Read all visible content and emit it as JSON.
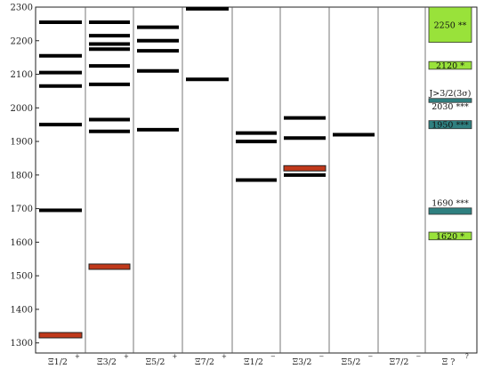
{
  "chart_data": {
    "type": "level-spectrum",
    "title": "",
    "xlabel": "",
    "ylabel": "",
    "ylim": [
      1270,
      2300
    ],
    "y_ticks": [
      1300,
      1400,
      1500,
      1600,
      1700,
      1800,
      1900,
      2000,
      2100,
      2200,
      2300
    ],
    "columns": [
      {
        "label": "Ξ1/2",
        "parity": "+"
      },
      {
        "label": "Ξ3/2",
        "parity": "+"
      },
      {
        "label": "Ξ5/2",
        "parity": "+"
      },
      {
        "label": "Ξ7/2",
        "parity": "+"
      },
      {
        "label": "Ξ1/2",
        "parity": "−"
      },
      {
        "label": "Ξ3/2",
        "parity": "−"
      },
      {
        "label": "Ξ5/2",
        "parity": "−"
      },
      {
        "label": "Ξ7/2",
        "parity": "−"
      },
      {
        "label": "Ξ ?",
        "parity": "?"
      }
    ],
    "levels": [
      {
        "col": 0,
        "mass": 1323,
        "kind": "experiment"
      },
      {
        "col": 0,
        "mass": 1695,
        "kind": "model"
      },
      {
        "col": 0,
        "mass": 1950,
        "kind": "model"
      },
      {
        "col": 0,
        "mass": 2065,
        "kind": "model"
      },
      {
        "col": 0,
        "mass": 2105,
        "kind": "model"
      },
      {
        "col": 0,
        "mass": 2155,
        "kind": "model"
      },
      {
        "col": 0,
        "mass": 2255,
        "kind": "model"
      },
      {
        "col": 1,
        "mass": 1527,
        "kind": "experiment"
      },
      {
        "col": 1,
        "mass": 1930,
        "kind": "model"
      },
      {
        "col": 1,
        "mass": 1965,
        "kind": "model"
      },
      {
        "col": 1,
        "mass": 2070,
        "kind": "model"
      },
      {
        "col": 1,
        "mass": 2125,
        "kind": "model"
      },
      {
        "col": 1,
        "mass": 2175,
        "kind": "model"
      },
      {
        "col": 1,
        "mass": 2190,
        "kind": "model"
      },
      {
        "col": 1,
        "mass": 2215,
        "kind": "model"
      },
      {
        "col": 1,
        "mass": 2255,
        "kind": "model"
      },
      {
        "col": 2,
        "mass": 1935,
        "kind": "model"
      },
      {
        "col": 2,
        "mass": 2110,
        "kind": "model"
      },
      {
        "col": 2,
        "mass": 2170,
        "kind": "model"
      },
      {
        "col": 2,
        "mass": 2200,
        "kind": "model"
      },
      {
        "col": 2,
        "mass": 2240,
        "kind": "model"
      },
      {
        "col": 3,
        "mass": 2085,
        "kind": "model"
      },
      {
        "col": 3,
        "mass": 2295,
        "kind": "model"
      },
      {
        "col": 4,
        "mass": 1785,
        "kind": "model"
      },
      {
        "col": 4,
        "mass": 1900,
        "kind": "model"
      },
      {
        "col": 4,
        "mass": 1925,
        "kind": "model"
      },
      {
        "col": 5,
        "mass": 1800,
        "kind": "model"
      },
      {
        "col": 5,
        "mass": 1820,
        "kind": "experiment"
      },
      {
        "col": 5,
        "mass": 1910,
        "kind": "model"
      },
      {
        "col": 5,
        "mass": 1970,
        "kind": "model"
      },
      {
        "col": 6,
        "mass": 1920,
        "kind": "model"
      }
    ],
    "experimental_boxes": [
      {
        "lo": 2195,
        "hi": 2300,
        "label": "2250 **",
        "color": "#99e23a"
      },
      {
        "lo": 2115,
        "hi": 2138,
        "label": "2120 *",
        "color": "#99e23a"
      },
      {
        "lo": 2016,
        "hi": 2028,
        "label": "",
        "color": "#2f8080"
      },
      {
        "lo": 1938,
        "hi": 1962,
        "label": "1950 ***",
        "color": "#2f8080"
      },
      {
        "lo": 1683,
        "hi": 1702,
        "label": "",
        "color": "#2f8080"
      },
      {
        "lo": 1607,
        "hi": 1630,
        "label": "1620 *",
        "color": "#99e23a"
      }
    ],
    "annotations": [
      {
        "mass": 2045,
        "text": "J>3/2(3σ)"
      },
      {
        "mass": 2005,
        "text": "2030 ***"
      },
      {
        "mass": 1718,
        "text": "1690 ***"
      }
    ],
    "colors": {
      "model": "#000000",
      "experiment": "#c0391b",
      "grid": "#555555"
    }
  }
}
